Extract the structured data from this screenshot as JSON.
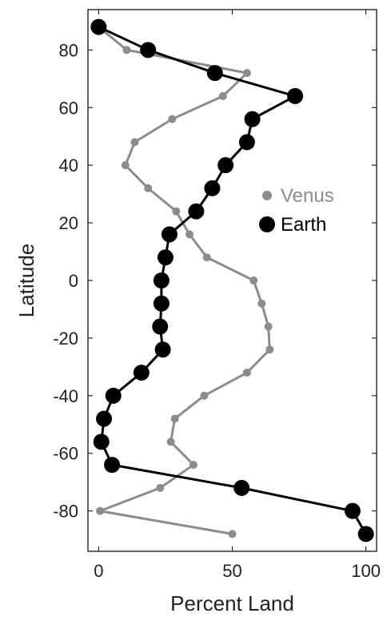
{
  "chart_data": {
    "type": "line",
    "title": "",
    "xlabel": "Percent Land",
    "ylabel": "Latitude",
    "xlim": [
      -4,
      104
    ],
    "ylim": [
      -94,
      94
    ],
    "xticks": [
      0,
      50,
      100
    ],
    "yticks": [
      80,
      60,
      40,
      20,
      0,
      -20,
      -40,
      -60,
      -80
    ],
    "grid": false,
    "legend_position": "right-middle",
    "series": [
      {
        "name": "Venus",
        "color": "#8c8c8c",
        "marker": "small-dot",
        "points": [
          {
            "x": 0,
            "y": 88
          },
          {
            "x": 10.5,
            "y": 80
          },
          {
            "x": 55.5,
            "y": 72
          },
          {
            "x": 46.5,
            "y": 64
          },
          {
            "x": 27.5,
            "y": 56
          },
          {
            "x": 13.5,
            "y": 48
          },
          {
            "x": 10,
            "y": 40
          },
          {
            "x": 18.5,
            "y": 32
          },
          {
            "x": 29,
            "y": 24
          },
          {
            "x": 34,
            "y": 16
          },
          {
            "x": 40.5,
            "y": 8
          },
          {
            "x": 58,
            "y": 0
          },
          {
            "x": 61,
            "y": -8
          },
          {
            "x": 63.5,
            "y": -16
          },
          {
            "x": 64,
            "y": -24
          },
          {
            "x": 55.5,
            "y": -32
          },
          {
            "x": 39.5,
            "y": -40
          },
          {
            "x": 28.5,
            "y": -48
          },
          {
            "x": 27,
            "y": -56
          },
          {
            "x": 35.5,
            "y": -64
          },
          {
            "x": 23,
            "y": -72
          },
          {
            "x": 0.5,
            "y": -80
          },
          {
            "x": 50,
            "y": -88
          }
        ]
      },
      {
        "name": "Earth",
        "color": "#000000",
        "marker": "large-dot",
        "points": [
          {
            "x": 0,
            "y": 88
          },
          {
            "x": 18.5,
            "y": 80
          },
          {
            "x": 43.5,
            "y": 72
          },
          {
            "x": 73.5,
            "y": 64
          },
          {
            "x": 57.5,
            "y": 56
          },
          {
            "x": 55.5,
            "y": 48
          },
          {
            "x": 47.5,
            "y": 40
          },
          {
            "x": 42.5,
            "y": 32
          },
          {
            "x": 36.5,
            "y": 24
          },
          {
            "x": 26.5,
            "y": 16
          },
          {
            "x": 25,
            "y": 8
          },
          {
            "x": 23.5,
            "y": 0
          },
          {
            "x": 23.5,
            "y": -8
          },
          {
            "x": 23,
            "y": -16
          },
          {
            "x": 24,
            "y": -24
          },
          {
            "x": 16,
            "y": -32
          },
          {
            "x": 5.5,
            "y": -40
          },
          {
            "x": 2,
            "y": -48
          },
          {
            "x": 1,
            "y": -56
          },
          {
            "x": 5,
            "y": -64
          },
          {
            "x": 53.5,
            "y": -72
          },
          {
            "x": 95,
            "y": -80
          },
          {
            "x": 100,
            "y": -88
          }
        ]
      }
    ]
  }
}
